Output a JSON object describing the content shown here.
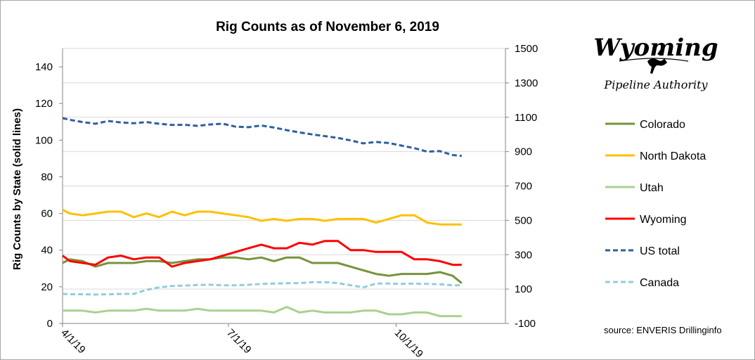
{
  "logo": {
    "name": "Wyoming",
    "subtitle": "Pipeline Authority"
  },
  "source": "source:  ENVERIS Drillinginfo",
  "chart_data": {
    "type": "line",
    "title": "Rig Counts as of November 6, 2019",
    "ylabel": "Rig Counts by State (solid lines)",
    "y2label": "",
    "ylim": [
      0,
      150
    ],
    "y2lim": [
      -100,
      1500
    ],
    "yticks": [
      0,
      20,
      40,
      60,
      80,
      100,
      120,
      140
    ],
    "y2ticks": [
      -100,
      100,
      300,
      500,
      700,
      900,
      1100,
      1300,
      1500
    ],
    "xlim": [
      "4/1/19",
      "11/30/19"
    ],
    "xticks": [
      "4/1/19",
      "7/1/19",
      "10/1/19"
    ],
    "grid": "horizontal",
    "legend_position": "right",
    "x": [
      "4/1/19",
      "4/5/19",
      "4/12/19",
      "4/19/19",
      "4/26/19",
      "5/3/19",
      "5/10/19",
      "5/17/19",
      "5/24/19",
      "5/31/19",
      "6/7/19",
      "6/14/19",
      "6/21/19",
      "6/28/19",
      "7/5/19",
      "7/12/19",
      "7/19/19",
      "7/26/19",
      "8/2/19",
      "8/9/19",
      "8/16/19",
      "8/23/19",
      "8/30/19",
      "9/6/19",
      "9/13/19",
      "9/20/19",
      "9/27/19",
      "10/4/19",
      "10/11/19",
      "10/18/19",
      "10/25/19",
      "11/1/19",
      "11/6/19"
    ],
    "series": [
      {
        "name": "Colorado",
        "axis": "left",
        "color": "#77933c",
        "dash": "none",
        "values": [
          33,
          35,
          34,
          31,
          33,
          33,
          33,
          34,
          34,
          33,
          34,
          35,
          35,
          36,
          36,
          35,
          36,
          34,
          36,
          36,
          33,
          33,
          33,
          31,
          29,
          27,
          26,
          27,
          27,
          27,
          28,
          26,
          22
        ]
      },
      {
        "name": "North Dakota",
        "axis": "left",
        "color": "#ffc000",
        "dash": "none",
        "values": [
          62,
          60,
          59,
          60,
          61,
          61,
          58,
          60,
          58,
          61,
          59,
          61,
          61,
          60,
          59,
          58,
          56,
          57,
          56,
          57,
          57,
          56,
          57,
          57,
          57,
          55,
          57,
          59,
          59,
          55,
          54,
          54,
          54
        ]
      },
      {
        "name": "Utah",
        "axis": "left",
        "color": "#a9d18e",
        "dash": "none",
        "values": [
          7,
          7,
          7,
          6,
          7,
          7,
          7,
          8,
          7,
          7,
          7,
          8,
          7,
          7,
          7,
          7,
          7,
          6,
          9,
          6,
          7,
          6,
          6,
          6,
          7,
          7,
          5,
          5,
          6,
          6,
          4,
          4,
          4
        ]
      },
      {
        "name": "Wyoming",
        "axis": "left",
        "color": "#ff0000",
        "dash": "none",
        "values": [
          37,
          34,
          33,
          32,
          36,
          37,
          35,
          36,
          36,
          31,
          33,
          34,
          35,
          37,
          39,
          41,
          43,
          41,
          41,
          44,
          43,
          45,
          45,
          40,
          40,
          39,
          39,
          39,
          35,
          35,
          34,
          32,
          32
        ]
      },
      {
        "name": "US total",
        "axis": "right",
        "color": "#2e5f9e",
        "dash": "dashed",
        "values": [
          1095,
          1085,
          1072,
          1062,
          1078,
          1070,
          1065,
          1072,
          1062,
          1055,
          1056,
          1050,
          1058,
          1062,
          1045,
          1042,
          1052,
          1040,
          1025,
          1012,
          1000,
          990,
          980,
          965,
          948,
          956,
          950,
          935,
          920,
          900,
          903,
          880,
          875
        ]
      },
      {
        "name": "Canada",
        "axis": "right",
        "color": "#92cddc",
        "dash": "dashed",
        "values": [
          72,
          70,
          70,
          68,
          70,
          72,
          72,
          95,
          110,
          118,
          120,
          124,
          125,
          122,
          122,
          125,
          130,
          132,
          134,
          135,
          140,
          140,
          135,
          122,
          110,
          132,
          132,
          130,
          132,
          130,
          128,
          122,
          122
        ]
      }
    ]
  }
}
